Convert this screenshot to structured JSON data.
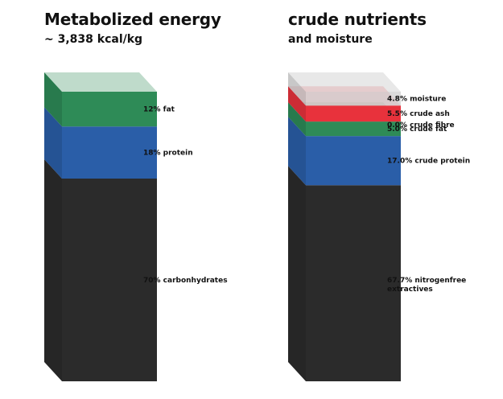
{
  "chart_data": [
    {
      "type": "bar",
      "stacked": true,
      "title": "Metabolized energy",
      "subtitle": "~ 3,838 kcal/kg",
      "unit": "%",
      "segments": [
        {
          "name": "carbonhydrates",
          "value": 70,
          "label": "70% carbonhydrates",
          "color": "#2b2b2b"
        },
        {
          "name": "protein",
          "value": 18,
          "label": "18% protein",
          "color": "#2a5ea8"
        },
        {
          "name": "fat",
          "value": 12,
          "label": "12% fat",
          "color": "#2e8b57"
        }
      ]
    },
    {
      "type": "bar",
      "stacked": true,
      "title": "crude nutrients",
      "subtitle": "and moisture",
      "unit": "%",
      "segments": [
        {
          "name": "nitrogenfree extractives",
          "value": 67.7,
          "label": "67.7% nitrogenfree extractives",
          "color": "#2b2b2b"
        },
        {
          "name": "crude protein",
          "value": 17.0,
          "label": "17.0% crude protein",
          "color": "#2a5ea8"
        },
        {
          "name": "crude fat",
          "value": 5.0,
          "label": "5.0% crude fat",
          "color": "#2e8b57"
        },
        {
          "name": "crude fibre",
          "value": 0.0,
          "label": "0.0% crude fibre",
          "color": "#8bc34a"
        },
        {
          "name": "crude ash",
          "value": 5.5,
          "label": "5.5% crude ash",
          "color": "#e8323c"
        },
        {
          "name": "moisture",
          "value": 4.8,
          "label": "4.8% moisture",
          "color": "#cfcfcf"
        }
      ]
    }
  ]
}
